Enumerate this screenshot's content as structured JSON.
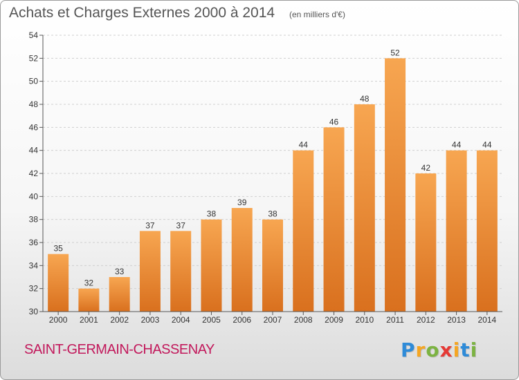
{
  "header": {
    "title": "Achats et Charges Externes 2000 à 2014",
    "subtitle": "(en milliers d'€)"
  },
  "footer": {
    "commune": "SAINT-GERMAIN-CHASSENAY",
    "logo_letters": [
      "P",
      "r",
      "o",
      "x",
      "i",
      "t",
      "i"
    ],
    "logo_colors": [
      "#2e8bd8",
      "#f5a623",
      "#7cb342",
      "#e53935",
      "#f5a623",
      "#2e8bd8",
      "#7cb342"
    ]
  },
  "colors": {
    "bar_top": "#f7a651",
    "bar_bottom": "#d9701e",
    "axis": "#555555",
    "grid": "#cfcfcf"
  },
  "chart_data": {
    "type": "bar",
    "categories": [
      "2000",
      "2001",
      "2002",
      "2003",
      "2004",
      "2005",
      "2006",
      "2007",
      "2008",
      "2009",
      "2010",
      "2011",
      "2012",
      "2013",
      "2014"
    ],
    "values": [
      35,
      32,
      33,
      37,
      37,
      38,
      39,
      38,
      44,
      46,
      48,
      52,
      42,
      44,
      44
    ],
    "title": "Achats et Charges Externes 2000 à 2014",
    "subtitle": "(en milliers d'€)",
    "ylim": [
      30,
      54
    ],
    "yticks": [
      30,
      32,
      34,
      36,
      38,
      40,
      42,
      44,
      46,
      48,
      50,
      52,
      54
    ],
    "grid": true
  }
}
